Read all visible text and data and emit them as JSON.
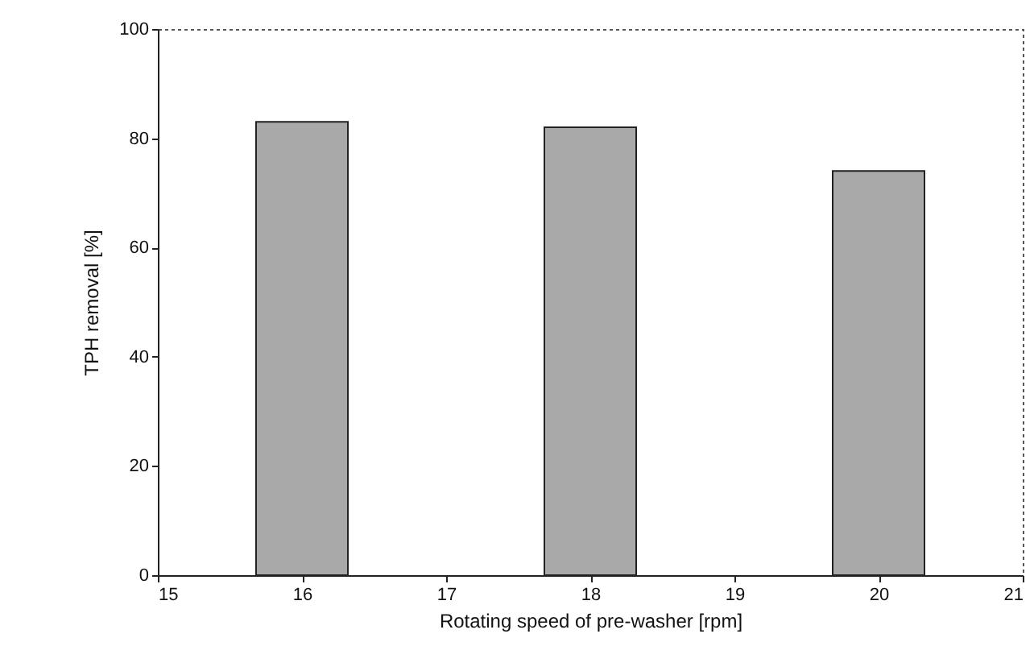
{
  "chart_data": {
    "type": "bar",
    "x": [
      16,
      18,
      20
    ],
    "values": [
      83,
      82,
      74
    ],
    "color": "#a9a9a9",
    "xlabel": "Rotating speed of pre-washer  [rpm]",
    "ylabel": "TPH removal  [%]",
    "xlim": [
      15,
      21
    ],
    "xticks": [
      15,
      16,
      17,
      18,
      19,
      20,
      21
    ],
    "ylim": [
      0,
      100
    ],
    "yticks": [
      0,
      20,
      40,
      60,
      80,
      100
    ],
    "grid": false
  }
}
